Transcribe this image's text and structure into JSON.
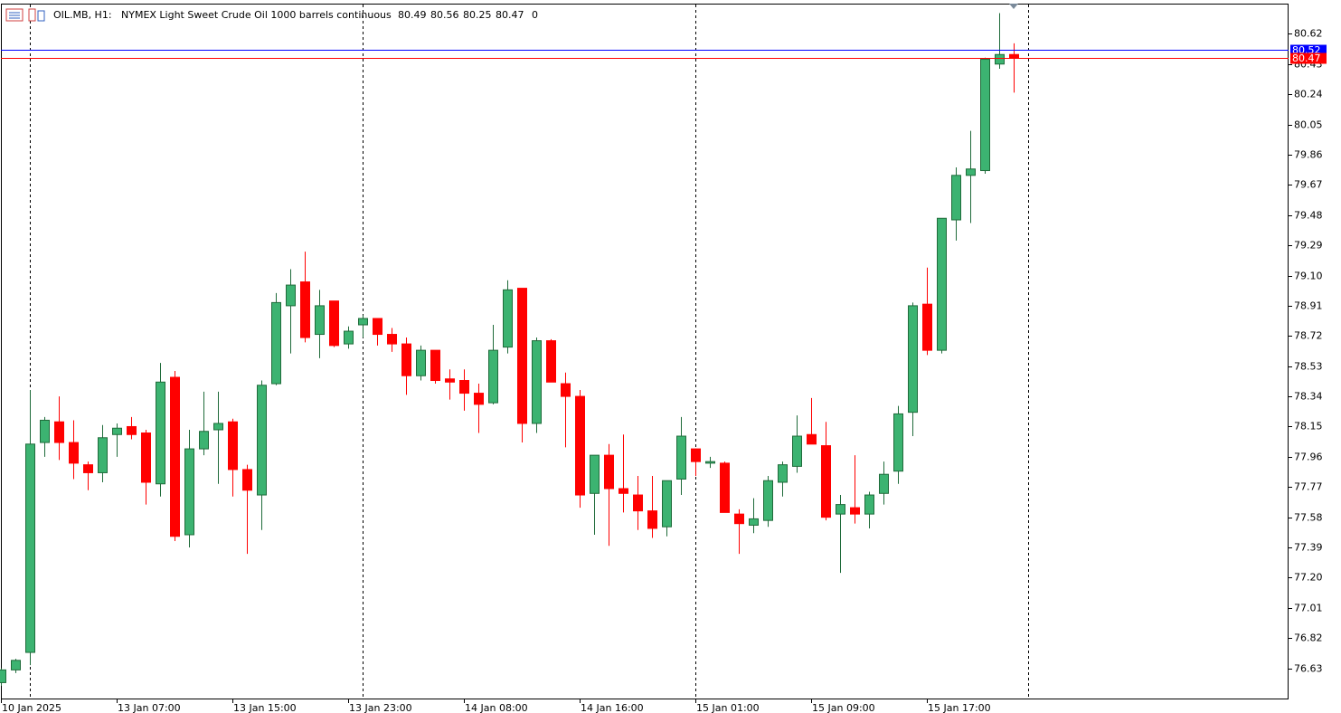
{
  "chart_data": {
    "type": "candlestick",
    "symbol": "OIL.MB, H1:",
    "title": "NYMEX Light Sweet Crude Oil 1000 barrels continuous",
    "info_tail": "0",
    "categories": [
      "10 Jan 2025",
      null,
      null,
      null,
      null,
      null,
      null,
      null,
      "13 Jan 07:00",
      null,
      null,
      null,
      null,
      null,
      null,
      null,
      "13 Jan 15:00",
      null,
      null,
      null,
      null,
      null,
      null,
      null,
      "13 Jan 23:00",
      null,
      null,
      null,
      null,
      null,
      null,
      null,
      "14 Jan 08:00",
      null,
      null,
      null,
      null,
      null,
      null,
      null,
      "14 Jan 16:00",
      null,
      null,
      null,
      null,
      null,
      null,
      null,
      "15 Jan 01:00",
      null,
      null,
      null,
      null,
      null,
      null,
      null,
      "15 Jan 09:00",
      null,
      null,
      null,
      null,
      null,
      null,
      null,
      "15 Jan 17:00",
      null,
      null,
      null,
      null,
      null,
      null
    ],
    "open": [
      76.54,
      76.62,
      76.73,
      78.05,
      78.18,
      78.05,
      77.91,
      77.86,
      78.1,
      78.15,
      78.11,
      77.79,
      78.46,
      77.47,
      78.01,
      78.13,
      78.18,
      77.88,
      77.72,
      78.42,
      78.91,
      79.06,
      78.73,
      78.94,
      78.67,
      78.79,
      78.83,
      78.73,
      78.67,
      78.47,
      78.63,
      78.45,
      78.44,
      78.36,
      78.3,
      78.65,
      79.02,
      78.17,
      78.69,
      78.42,
      78.34,
      77.73,
      77.97,
      77.76,
      77.72,
      77.62,
      77.52,
      77.82,
      78.01,
      77.92,
      77.92,
      77.6,
      77.53,
      77.56,
      77.8,
      77.9,
      78.1,
      78.03,
      77.6,
      77.64,
      77.6,
      77.73,
      77.87,
      78.24,
      78.92,
      78.63,
      79.45,
      79.73,
      79.76,
      80.43,
      80.49
    ],
    "high": [
      76.63,
      76.69,
      78.38,
      78.21,
      78.34,
      78.19,
      77.93,
      78.16,
      78.17,
      78.21,
      78.13,
      78.55,
      78.5,
      78.13,
      78.37,
      78.37,
      78.2,
      77.91,
      78.44,
      78.99,
      79.14,
      79.25,
      79.01,
      78.94,
      78.78,
      78.85,
      78.83,
      78.77,
      78.71,
      78.66,
      78.63,
      78.51,
      78.51,
      78.42,
      78.79,
      79.07,
      79.02,
      78.71,
      78.7,
      78.49,
      78.38,
      77.97,
      78.04,
      78.1,
      77.84,
      77.84,
      77.81,
      78.21,
      78.01,
      77.96,
      77.93,
      77.63,
      77.7,
      77.84,
      77.93,
      78.22,
      78.33,
      78.18,
      77.72,
      77.97,
      77.74,
      77.93,
      78.28,
      78.93,
      79.15,
      79.46,
      79.78,
      80.01,
      80.47,
      80.75,
      80.56
    ],
    "low": [
      76.52,
      76.6,
      76.65,
      77.96,
      77.94,
      77.82,
      77.75,
      77.8,
      77.96,
      78.07,
      77.66,
      77.71,
      77.43,
      77.39,
      77.97,
      77.79,
      77.71,
      77.35,
      77.5,
      78.41,
      78.61,
      78.68,
      78.58,
      78.65,
      78.64,
      78.71,
      78.66,
      78.62,
      78.35,
      78.44,
      78.42,
      78.32,
      78.25,
      78.11,
      78.29,
      78.61,
      78.05,
      78.11,
      78.43,
      78.02,
      77.64,
      77.47,
      77.4,
      77.61,
      77.5,
      77.45,
      77.46,
      77.72,
      77.84,
      77.89,
      77.61,
      77.35,
      77.48,
      77.52,
      77.71,
      77.86,
      78.04,
      77.56,
      77.23,
      77.54,
      77.51,
      77.66,
      77.79,
      78.09,
      78.6,
      78.61,
      79.32,
      79.43,
      79.74,
      80.4,
      80.25
    ],
    "close": [
      76.62,
      76.68,
      78.04,
      78.19,
      78.05,
      77.92,
      77.86,
      78.08,
      78.14,
      78.1,
      77.8,
      78.43,
      77.46,
      78.01,
      78.12,
      78.17,
      77.88,
      77.75,
      78.41,
      78.93,
      79.04,
      78.71,
      78.91,
      78.66,
      78.75,
      78.83,
      78.73,
      78.67,
      78.47,
      78.63,
      78.44,
      78.43,
      78.36,
      78.29,
      78.63,
      79.01,
      78.17,
      78.69,
      78.43,
      78.34,
      77.72,
      77.97,
      77.76,
      77.73,
      77.62,
      77.51,
      77.81,
      78.09,
      77.93,
      77.93,
      77.61,
      77.54,
      77.57,
      77.81,
      77.91,
      78.09,
      78.04,
      77.58,
      77.66,
      77.6,
      77.72,
      77.85,
      78.23,
      78.91,
      78.63,
      79.46,
      79.73,
      79.77,
      80.46,
      80.49,
      80.47
    ],
    "up_color": "#3cb371",
    "up_line_color": "#1f6b3a",
    "down_color": "#ff0000",
    "ylim": [
      76.44,
      80.81
    ],
    "yticks": [
      80.62,
      80.43,
      80.24,
      80.05,
      79.86,
      79.67,
      79.48,
      79.29,
      {
        "value": 79.1,
        "label": "79.10"
      },
      78.91,
      78.72,
      78.53,
      78.34,
      78.15,
      77.96,
      77.77,
      77.58,
      77.39,
      {
        "value": 77.2,
        "label": "77.20"
      },
      77.01,
      76.82,
      76.63
    ],
    "ask_line": {
      "value": 80.52,
      "color": "#0000ff"
    },
    "bid_line": {
      "value": 80.47,
      "color": "#ff0000"
    }
  }
}
